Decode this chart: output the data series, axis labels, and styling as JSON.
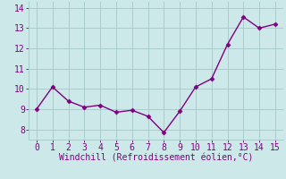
{
  "x": [
    0,
    1,
    2,
    3,
    4,
    5,
    6,
    7,
    8,
    9,
    10,
    11,
    12,
    13,
    14,
    15
  ],
  "y": [
    9.0,
    10.1,
    9.4,
    9.1,
    9.2,
    8.85,
    8.95,
    8.65,
    7.85,
    8.9,
    10.1,
    10.5,
    12.2,
    13.55,
    13.0,
    13.2
  ],
  "line_color": "#800080",
  "marker": "D",
  "marker_size": 2.5,
  "bg_color": "#cce8e8",
  "grid_color": "#aacccc",
  "xlabel": "Windchill (Refroidissement éolien,°C)",
  "xlabel_color": "#800080",
  "xlabel_fontsize": 7,
  "tick_color": "#800080",
  "tick_fontsize": 7,
  "xlim": [
    -0.5,
    15.5
  ],
  "ylim": [
    7.5,
    14.3
  ],
  "yticks": [
    8,
    9,
    10,
    11,
    12,
    13,
    14
  ],
  "xticks": [
    0,
    1,
    2,
    3,
    4,
    5,
    6,
    7,
    8,
    9,
    10,
    11,
    12,
    13,
    14,
    15
  ],
  "linewidth": 1.0
}
